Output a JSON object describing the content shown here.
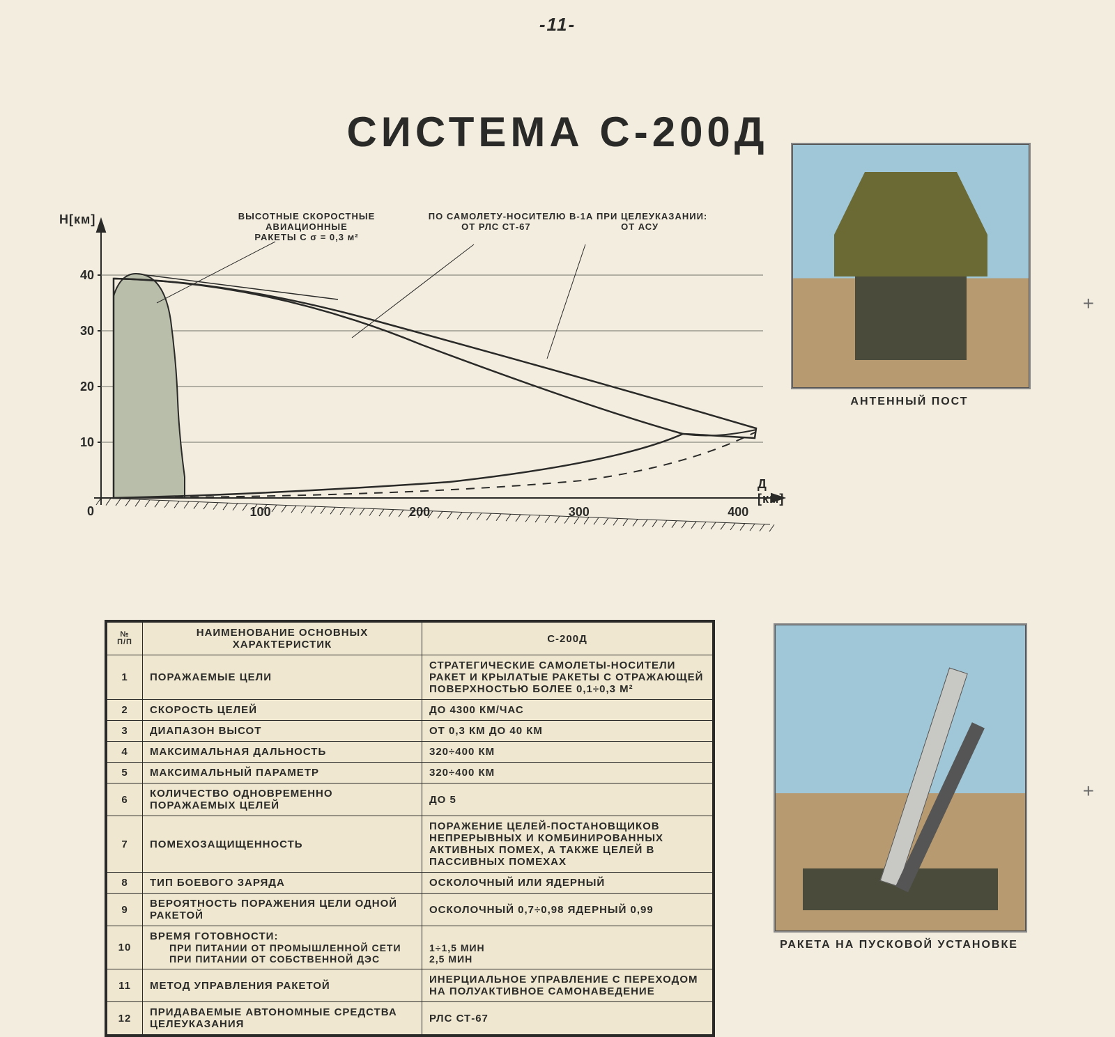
{
  "page_number": "-11-",
  "title": "СИСТЕМА С-200Д",
  "crop_marks": [
    "+",
    "+"
  ],
  "photos": {
    "top": {
      "caption": "АНТЕННЫЙ ПОСТ"
    },
    "bottom": {
      "caption": "РАКЕТА НА ПУСКОВОЙ УСТАНОВКЕ"
    }
  },
  "chart": {
    "y_axis_label": "Н[км]",
    "x_axis_label": "Д [км]",
    "y_ticks": [
      "0",
      "10",
      "20",
      "30",
      "40"
    ],
    "x_ticks": [
      "100",
      "200",
      "300",
      "400"
    ],
    "annot_left_line1": "ВЫСОТНЫЕ СКОРОСТНЫЕ АВИАЦИОННЫЕ",
    "annot_left_line2": "РАКЕТЫ С σ = 0,3 м²",
    "annot_right_line1": "ПО САМОЛЕТУ-НОСИТЕЛЮ В-1А ПРИ ЦЕЛЕУКАЗАНИИ:",
    "annot_right_line2a": "ОТ РЛС СТ-67",
    "annot_right_line2b": "ОТ АСУ",
    "grid_color": "#6f6f66",
    "axis_color": "#2a2a28",
    "envelope_fill": "none",
    "envelope_stroke": "#2a2a28",
    "shaded_fill": "#b9beaa",
    "font_size_axis": 16,
    "font_size_tick": 18
  },
  "table": {
    "head_num": "№ п/п",
    "head_name": "НАИМЕНОВАНИЕ ОСНОВНЫХ ХАРАКТЕРИСТИК",
    "head_val": "С-200Д",
    "rows": [
      {
        "n": "1",
        "k": "ПОРАЖАЕМЫЕ ЦЕЛИ",
        "v": "СТРАТЕГИЧЕСКИЕ САМОЛЕТЫ-НОСИТЕЛИ РАКЕТ И КРЫЛАТЫЕ РАКЕТЫ С ОТРАЖАЮЩЕЙ ПОВЕРХНОСТЬЮ БОЛЕЕ 0,1÷0,3 м²"
      },
      {
        "n": "2",
        "k": "СКОРОСТЬ ЦЕЛЕЙ",
        "v": "ДО 4300 КМ/ЧАС"
      },
      {
        "n": "3",
        "k": "ДИАПАЗОН ВЫСОТ",
        "v": "ОТ 0,3 КМ ДО 40 КМ"
      },
      {
        "n": "4",
        "k": "МАКСИМАЛЬНАЯ ДАЛЬНОСТЬ",
        "v": "320÷400 КМ"
      },
      {
        "n": "5",
        "k": "МАКСИМАЛЬНЫЙ ПАРАМЕТР",
        "v": "320÷400 КМ"
      },
      {
        "n": "6",
        "k": "КОЛИЧЕСТВО ОДНОВРЕМЕННО ПОРАЖАЕМЫХ ЦЕЛЕЙ",
        "v": "ДО 5"
      },
      {
        "n": "7",
        "k": "ПОМЕХОЗАЩИЩЕННОСТЬ",
        "v": "ПОРАЖЕНИЕ ЦЕЛЕЙ-ПОСТАНОВЩИКОВ НЕПРЕРЫВНЫХ И КОМБИНИРОВАННЫХ АКТИВНЫХ ПОМЕХ, А ТАКЖЕ ЦЕЛЕЙ В ПАССИВНЫХ ПОМЕХАХ"
      },
      {
        "n": "8",
        "k": "ТИП БОЕВОГО ЗАРЯДА",
        "v": "ОСКОЛОЧНЫЙ ИЛИ ЯДЕРНЫЙ"
      },
      {
        "n": "9",
        "k": "ВЕРОЯТНОСТЬ ПОРАЖЕНИЯ ЦЕЛИ ОДНОЙ РАКЕТОЙ",
        "v": "ОСКОЛОЧНЫЙ 0,7÷0,98  ЯДЕРНЫЙ 0,99"
      },
      {
        "n": "10",
        "k": "ВРЕМЯ ГОТОВНОСТИ:",
        "k_sub1": "ПРИ ПИТАНИИ ОТ ПРОМЫШЛЕННОЙ СЕТИ",
        "k_sub2": "ПРИ ПИТАНИИ ОТ СОБСТВЕННОЙ ДЭС",
        "v_sub1": "1÷1,5 МИН",
        "v_sub2": "2,5 МИН"
      },
      {
        "n": "11",
        "k": "МЕТОД УПРАВЛЕНИЯ РАКЕТОЙ",
        "v": "ИНЕРЦИАЛЬНОЕ УПРАВЛЕНИЕ С ПЕРЕХОДОМ НА ПОЛУАКТИВНОЕ САМОНАВЕДЕНИЕ"
      },
      {
        "n": "12",
        "k": "ПРИДАВАЕМЫЕ АВТОНОМНЫЕ СРЕДСТВА ЦЕЛЕУКАЗАНИЯ",
        "v": "РЛС СТ-67"
      }
    ]
  }
}
